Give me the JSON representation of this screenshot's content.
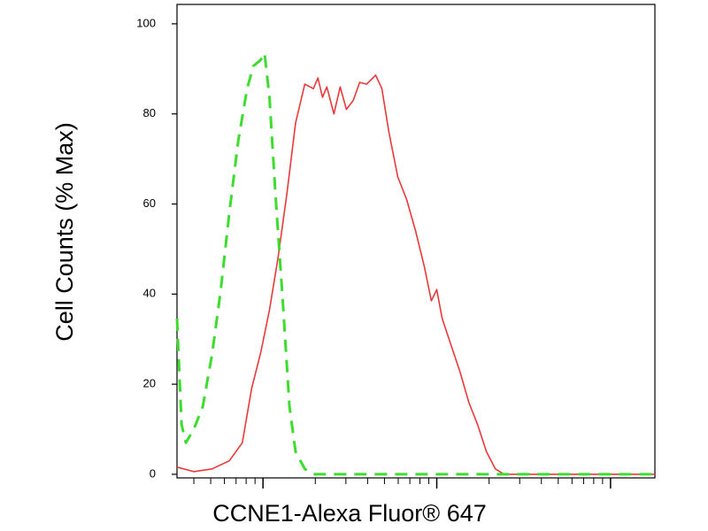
{
  "chart_data": {
    "type": "line",
    "x_label": "CCNE1-Alexa Fluor® 647",
    "y_label": "Cell Counts (% Max)",
    "x_log_scale": true,
    "xlim": [
      32,
      18000
    ],
    "xticks": [
      100,
      1000,
      10000
    ],
    "ylim": [
      -0.8,
      104.3
    ],
    "yticks": [
      0,
      20,
      40,
      60,
      80,
      100
    ],
    "series": [
      {
        "color": "#e8393a",
        "dash": false,
        "x": [
          32,
          40,
          51,
          64,
          76,
          86,
          97,
          109,
          122,
          137,
          154,
          174,
          195,
          207,
          220,
          233,
          256,
          278,
          302,
          331,
          360,
          395,
          445,
          483,
          530,
          597,
          671,
          755,
          849,
          931,
          1000,
          1074,
          1208,
          1359,
          1528,
          1718,
          1932,
          2173,
          2443,
          18000
        ],
        "values": [
          1.6,
          0.6,
          1.2,
          3,
          7,
          19,
          27,
          36.5,
          48,
          62,
          78,
          86.6,
          85.6,
          88,
          83.7,
          86,
          80,
          86,
          81,
          83,
          87,
          86.6,
          88.6,
          85.6,
          76,
          66,
          61,
          54,
          46,
          38.5,
          41,
          34.6,
          28.7,
          22.8,
          16,
          11,
          5,
          1.2,
          0,
          0
        ]
      },
      {
        "color": "#3ddc2e",
        "dash": true,
        "x": [
          32,
          34,
          36,
          40,
          45,
          51,
          57,
          64,
          72,
          81,
          88,
          97,
          102,
          109,
          118,
          130,
          142,
          154,
          174,
          195,
          18000
        ],
        "values": [
          34.6,
          11,
          7,
          10,
          15,
          26.7,
          40.5,
          58,
          74,
          85.6,
          90.6,
          92,
          93.5,
          83.7,
          62,
          38.5,
          15,
          5,
          1.2,
          0,
          0
        ]
      }
    ]
  }
}
